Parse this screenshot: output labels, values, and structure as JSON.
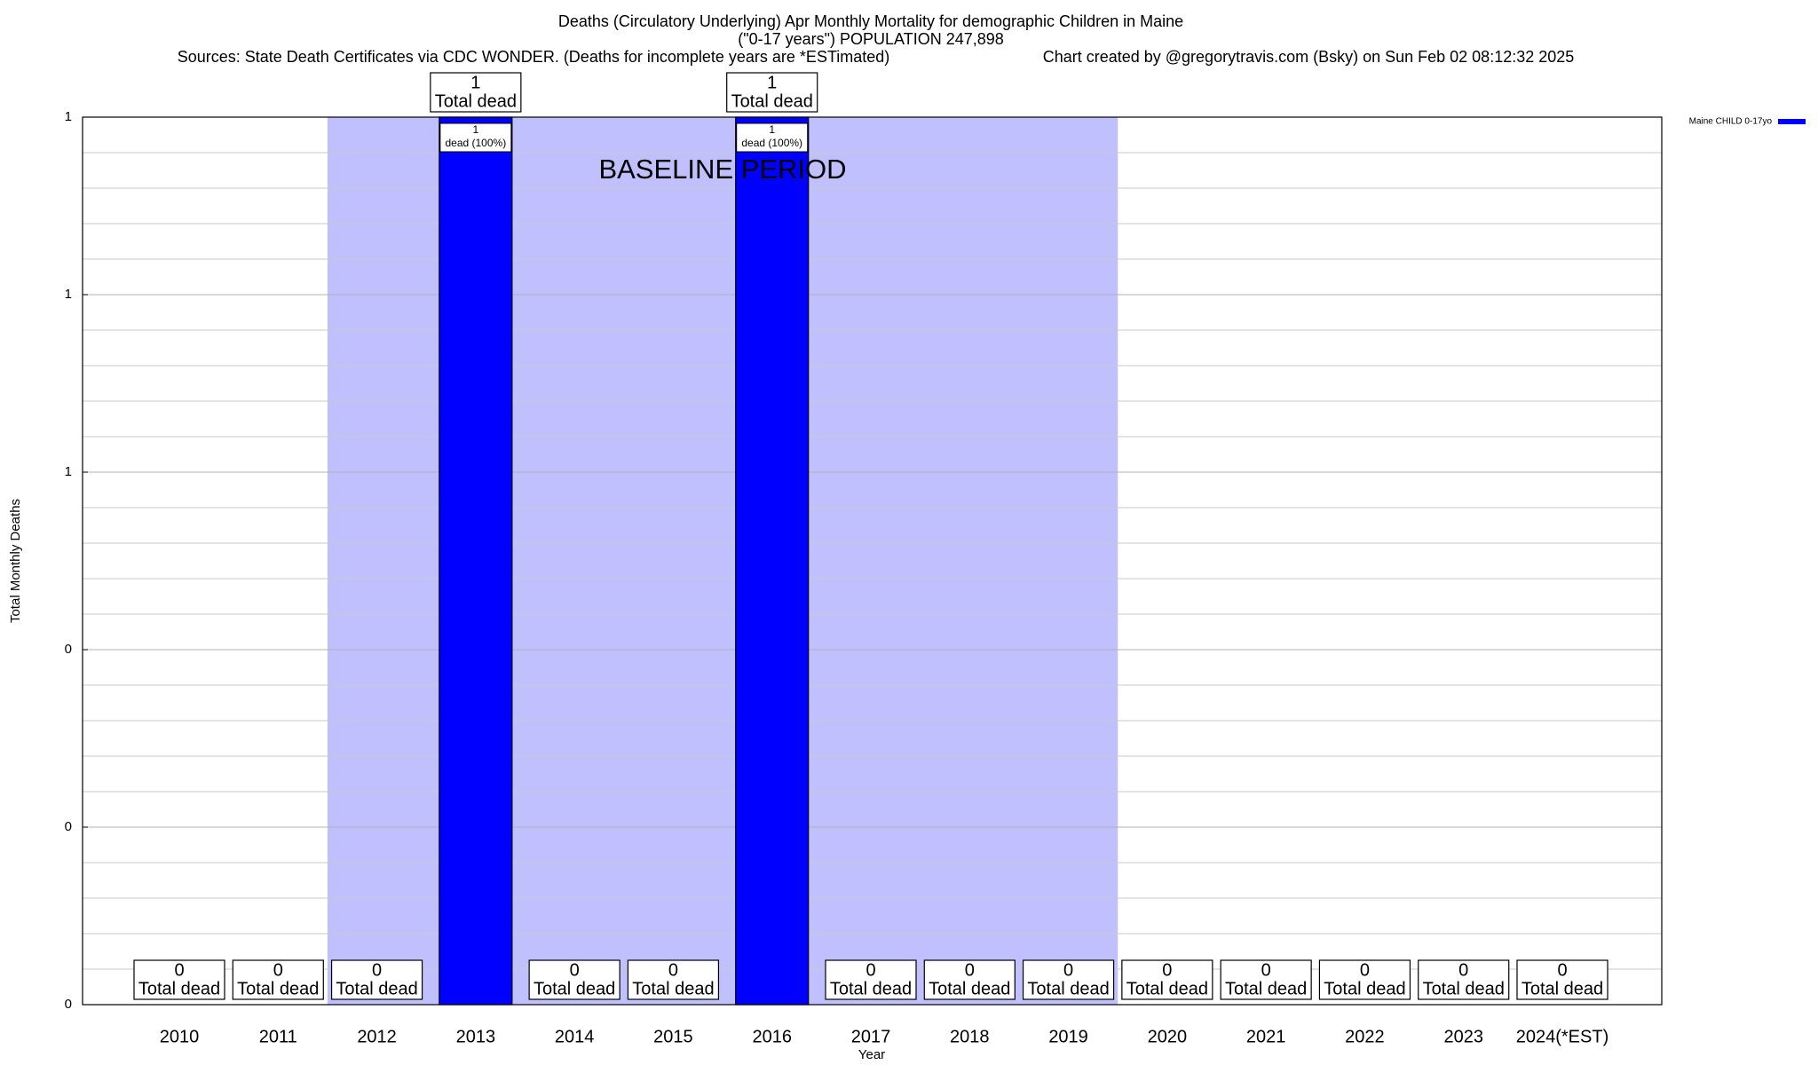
{
  "chart_data": {
    "type": "bar",
    "title": "Deaths (Circulatory Underlying) Apr Monthly Mortality for demographic Children in Maine",
    "subtitle": "(\"0-17 years\") POPULATION 247,898",
    "source": "Sources: State Death Certificates via CDC WONDER. (Deaths for incomplete years are *ESTimated)",
    "credit": "Chart created by @gregorytravis.com (Bsky) on Sun Feb 02 08:12:32 2025",
    "x_label": "Year",
    "y_label": "Total Monthly Deaths",
    "categories": [
      "2010",
      "2011",
      "2012",
      "2013",
      "2014",
      "2015",
      "2016",
      "2017",
      "2018",
      "2019",
      "2020",
      "2021",
      "2022",
      "2023",
      "2024(*EST)"
    ],
    "series": [
      {
        "name": "Maine CHILD 0-17yo",
        "color": "#0000ff",
        "values": [
          0,
          0,
          0,
          1,
          0,
          0,
          1,
          0,
          0,
          0,
          0,
          0,
          0,
          0,
          0
        ]
      }
    ],
    "total_label": "Total dead",
    "inner_label": "dead (100%)",
    "baseline": {
      "label": "BASELINE PERIOD",
      "from": "2012",
      "to": "2019",
      "color": "#c0c0ff"
    },
    "ylim": [
      0,
      1
    ],
    "yticks": [
      0,
      {
        "value": 0.2,
        "label": "0"
      },
      {
        "value": 0.4,
        "label": "0"
      },
      {
        "value": 0.6,
        "label": "1"
      },
      {
        "value": 0.8,
        "label": "1"
      },
      1
    ],
    "grid": true,
    "legend": "top-right"
  }
}
